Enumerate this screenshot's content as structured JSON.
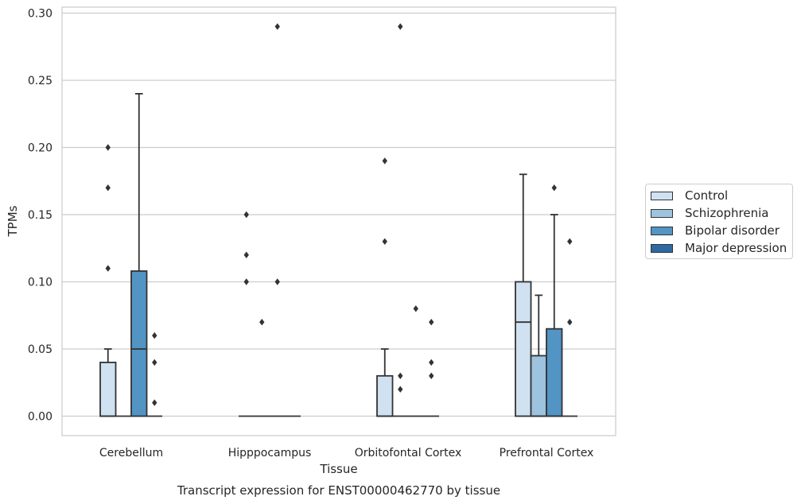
{
  "chart_data": {
    "type": "box",
    "title": "Transcript expression for ENST00000462770 by tissue",
    "xlabel": "Tissue",
    "ylabel": "TPMs",
    "ylim": [
      -0.014,
      0.305
    ],
    "yticks": [
      "0.00",
      "0.05",
      "0.10",
      "0.15",
      "0.20",
      "0.25",
      "0.30"
    ],
    "grid": "horizontal",
    "legend_position": "right",
    "categories": [
      "Cerebellum",
      "Hipppocampus",
      "Orbitofontal Cortex",
      "Prefrontal Cortex"
    ],
    "series": [
      {
        "name": "Control",
        "color": "#d0e1f1",
        "boxes": [
          {
            "q1": 0,
            "median": 0,
            "q3": 0.04,
            "whisker_low": 0,
            "whisker_high": 0.05,
            "outliers": [
              0.11,
              0.17,
              0.2
            ]
          },
          {
            "q1": 0,
            "median": 0,
            "q3": 0,
            "whisker_low": 0,
            "whisker_high": 0,
            "outliers": [
              0.1,
              0.12,
              0.15
            ]
          },
          {
            "q1": 0,
            "median": 0,
            "q3": 0.03,
            "whisker_low": 0,
            "whisker_high": 0.05,
            "outliers": [
              0.13,
              0.19
            ]
          },
          {
            "q1": 0,
            "median": 0.07,
            "q3": 0.1,
            "whisker_low": 0,
            "whisker_high": 0.18,
            "outliers": []
          }
        ]
      },
      {
        "name": "Schizophrenia",
        "color": "#9dc3de",
        "boxes": [
          {
            "q1": 0,
            "median": 0,
            "q3": 0,
            "whisker_low": 0,
            "whisker_high": 0,
            "outliers": []
          },
          {
            "q1": 0,
            "median": 0,
            "q3": 0,
            "whisker_low": 0,
            "whisker_high": 0,
            "outliers": [
              0.07
            ]
          },
          {
            "q1": 0,
            "median": 0,
            "q3": 0,
            "whisker_low": 0,
            "whisker_high": 0,
            "outliers": [
              0.02,
              0.03,
              0.29
            ]
          },
          {
            "q1": 0,
            "median": 0,
            "q3": 0.045,
            "whisker_low": 0,
            "whisker_high": 0.09,
            "outliers": []
          }
        ]
      },
      {
        "name": "Bipolar disorder",
        "color": "#5294c4",
        "boxes": [
          {
            "q1": 0,
            "median": 0.05,
            "q3": 0.108,
            "whisker_low": 0,
            "whisker_high": 0.24,
            "outliers": []
          },
          {
            "q1": 0,
            "median": 0,
            "q3": 0,
            "whisker_low": 0,
            "whisker_high": 0,
            "outliers": [
              0.1,
              0.29
            ]
          },
          {
            "q1": 0,
            "median": 0,
            "q3": 0,
            "whisker_low": 0,
            "whisker_high": 0,
            "outliers": [
              0.08
            ]
          },
          {
            "q1": 0,
            "median": 0,
            "q3": 0.065,
            "whisker_low": 0,
            "whisker_high": 0.15,
            "outliers": [
              0.17
            ]
          }
        ]
      },
      {
        "name": "Major depression",
        "color": "#2d6aa1",
        "boxes": [
          {
            "q1": 0,
            "median": 0,
            "q3": 0,
            "whisker_low": 0,
            "whisker_high": 0,
            "outliers": [
              0.01,
              0.04,
              0.06
            ]
          },
          {
            "q1": 0,
            "median": 0,
            "q3": 0,
            "whisker_low": 0,
            "whisker_high": 0,
            "outliers": []
          },
          {
            "q1": 0,
            "median": 0,
            "q3": 0,
            "whisker_low": 0,
            "whisker_high": 0,
            "outliers": [
              0.03,
              0.04,
              0.07
            ]
          },
          {
            "q1": 0,
            "median": 0,
            "q3": 0,
            "whisker_low": 0,
            "whisker_high": 0,
            "outliers": [
              0.07,
              0.13
            ]
          }
        ]
      }
    ]
  }
}
